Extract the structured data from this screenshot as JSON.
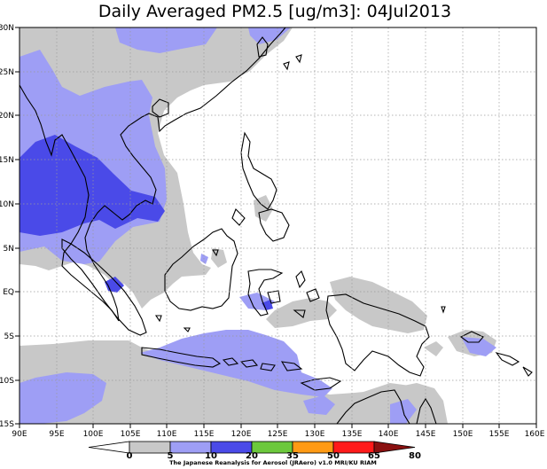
{
  "title": "Daily Averaged PM2.5 [ug/m3]: 04Jul2013",
  "credit": "The Japanese Reanalysis for Aerosol (JRAero) v1.0 MRI/KU RIAM",
  "x_ticks": [
    "90E",
    "95E",
    "100E",
    "105E",
    "110E",
    "115E",
    "120E",
    "125E",
    "130E",
    "135E",
    "140E",
    "145E",
    "150E",
    "155E",
    "160E"
  ],
  "y_ticks": [
    "30N",
    "25N",
    "20N",
    "15N",
    "10N",
    "5N",
    "EQ",
    "5S",
    "10S",
    "15S"
  ],
  "colorbar": {
    "labels": [
      "0",
      "5",
      "10",
      "20",
      "35",
      "50",
      "65",
      "80"
    ],
    "colors": [
      "#ffffff",
      "#c8c8c8",
      "#9e9ef5",
      "#4a4ae8",
      "#6cc83c",
      "#ff9a14",
      "#ff1a1a",
      "#8a1010"
    ]
  },
  "shading": {
    "light_grey": "#c8c8c8",
    "light_blue": "#9e9ef5",
    "blue": "#4a4ae8"
  }
}
